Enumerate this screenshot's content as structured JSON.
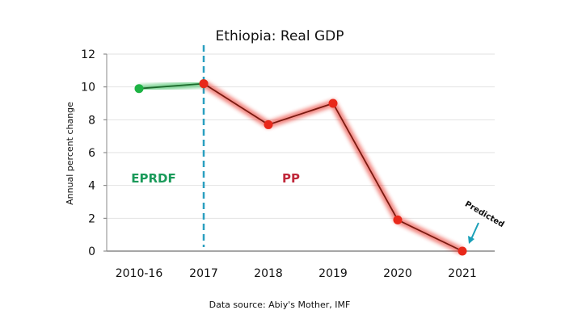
{
  "chart_data": {
    "type": "line",
    "title": "Ethiopia: Real GDP",
    "xlabel": "",
    "ylabel": "Annual percent change",
    "categories": [
      "2010-16",
      "2017",
      "2018",
      "2019",
      "2020",
      "2021"
    ],
    "series": [
      {
        "name": "EPRDF",
        "color": "#1db344",
        "x": [
          "2010-16",
          "2017"
        ],
        "values": [
          9.9,
          10.2
        ]
      },
      {
        "name": "PP",
        "color": "#e8281a",
        "x": [
          "2017",
          "2018",
          "2019",
          "2020",
          "2021"
        ],
        "values": [
          10.2,
          7.7,
          9.0,
          1.9,
          0.0
        ]
      }
    ],
    "ylim": [
      0,
      12
    ],
    "yticks": [
      0,
      2,
      4,
      6,
      8,
      10,
      12
    ],
    "grid": true,
    "divider_at": "2017",
    "annotations": {
      "left_era": "EPRDF",
      "right_era": "PP",
      "predicted": "Predicted"
    },
    "source": "Data source: Abiy's Mother, IMF"
  }
}
